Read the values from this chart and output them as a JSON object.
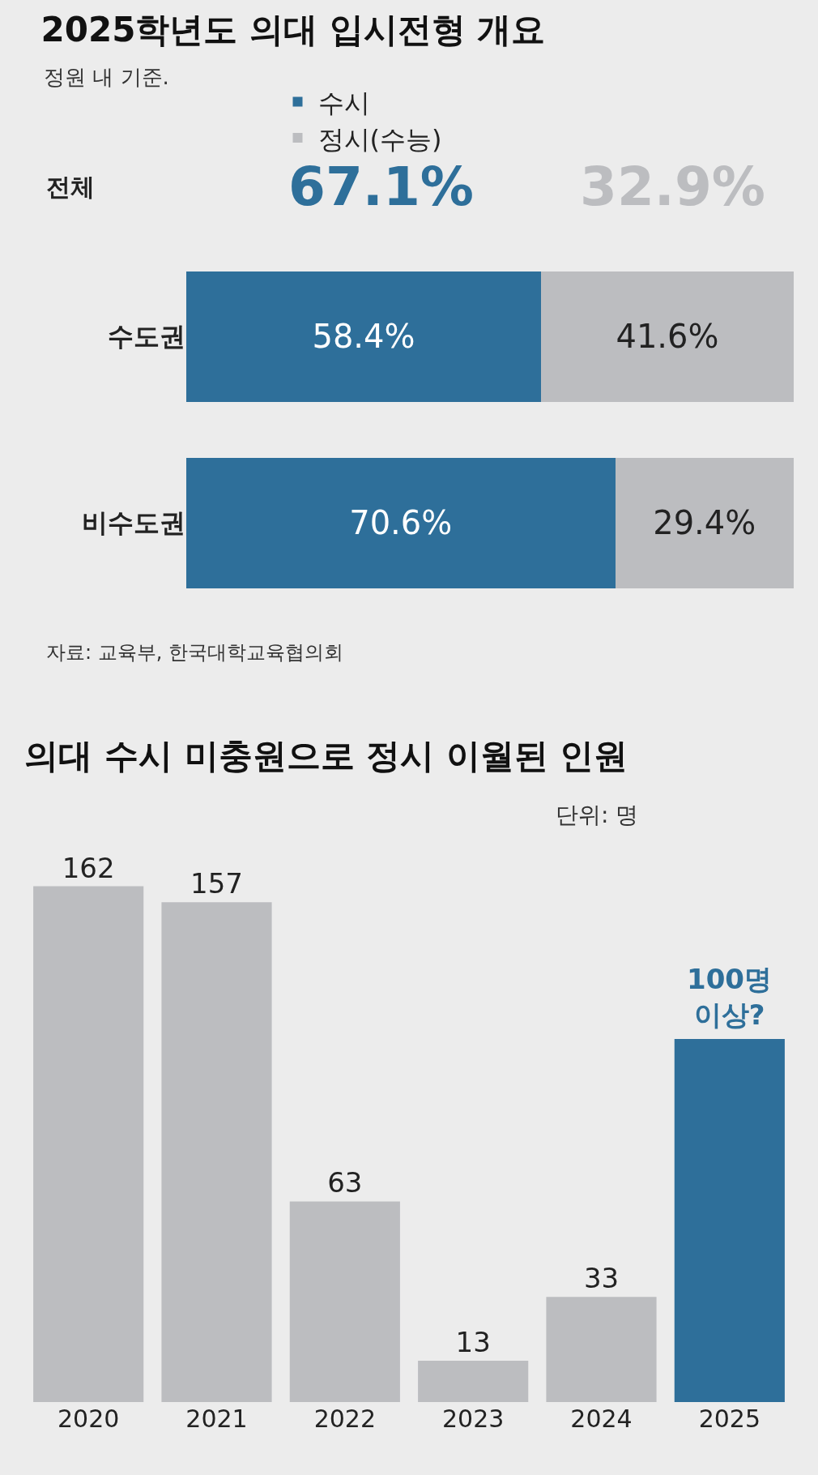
{
  "chart_data": [
    {
      "type": "bar",
      "orientation": "horizontal",
      "stacked": true,
      "title": "2025학년도 의대 입시전형 개요",
      "subtitle": "정원 내 기준.",
      "categories": [
        "수도권",
        "비수도권"
      ],
      "series": [
        {
          "name": "수시",
          "color": "#2e6f9a",
          "values": [
            58.4,
            70.6
          ],
          "value_labels": [
            "58.4%",
            "70.6%"
          ]
        },
        {
          "name": "정시(수능)",
          "color": "#bcbdc0",
          "values": [
            41.6,
            29.4
          ],
          "value_labels": [
            "41.6%",
            "29.4%"
          ]
        }
      ],
      "xlim": [
        0,
        100
      ],
      "tick_labels": "y",
      "legend": "top",
      "annotations": [
        "전체",
        "67.1%",
        "32.9%",
        "자료: 교육부, 한국대학교육협의회"
      ]
    },
    {
      "type": "bar",
      "title": "의대 수시 미충원으로 정시 이월된 인원",
      "categories": [
        "2020",
        "2021",
        "2022",
        "2023",
        "2024",
        "2025"
      ],
      "values": [
        162,
        157,
        63,
        13,
        33,
        114
      ],
      "colors": [
        "#bcbdc0",
        "#bcbdc0",
        "#bcbdc0",
        "#bcbdc0",
        "#bcbdc0",
        "#2e6f9a"
      ],
      "value_labels": [
        "162",
        "157",
        "63",
        "13",
        "33",
        null
      ],
      "tick_labels": "x",
      "annotations": [
        "단위: 명",
        {
          "text": "100명\n이상?",
          "x": "2025",
          "y": 114
        }
      ]
    }
  ]
}
